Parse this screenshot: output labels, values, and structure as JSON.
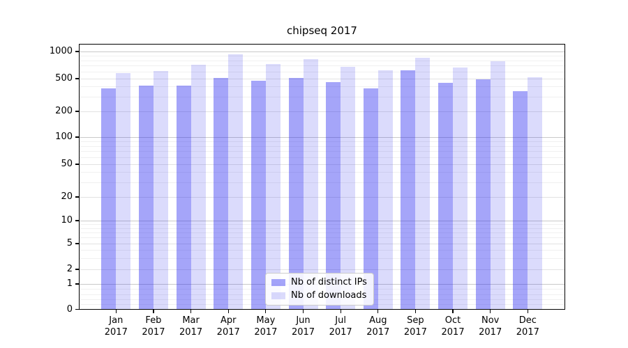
{
  "title": "chipseq 2017",
  "chart_data": {
    "type": "bar",
    "title": "chipseq 2017",
    "categories": [
      "Jan 2017",
      "Feb 2017",
      "Mar 2017",
      "Apr 2017",
      "May 2017",
      "Jun 2017",
      "Jul 2017",
      "Aug 2017",
      "Sep 2017",
      "Oct 2017",
      "Nov 2017",
      "Dec 2017"
    ],
    "series": [
      {
        "name": "Nb of distinct IPs",
        "color": "rgba(40,40,240,0.42)",
        "values": [
          380,
          410,
          410,
          510,
          470,
          510,
          455,
          380,
          615,
          445,
          495,
          350
        ]
      },
      {
        "name": "Nb of downloads",
        "color": "rgba(40,40,240,0.17)",
        "values": [
          575,
          605,
          715,
          930,
          725,
          820,
          675,
          615,
          850,
          670,
          780,
          515
        ]
      }
    ],
    "yscale": "symlog",
    "y_ticks": [
      0,
      1,
      2,
      5,
      10,
      20,
      50,
      100,
      200,
      500,
      1000
    ],
    "y_minor_ticks": [
      0.2,
      0.4,
      0.6,
      0.8,
      3,
      4,
      6,
      7,
      8,
      9,
      30,
      40,
      60,
      70,
      80,
      90,
      300,
      400,
      600,
      700,
      800,
      900
    ],
    "ylim": [
      0,
      1150
    ],
    "grid": true,
    "legend_position": "lower center"
  },
  "colors": {
    "grid_decade": "#c9c9c9",
    "grid_labeled": "#e2e2e2",
    "grid_minor": "#f0f0f0",
    "background": "#ffffff"
  }
}
